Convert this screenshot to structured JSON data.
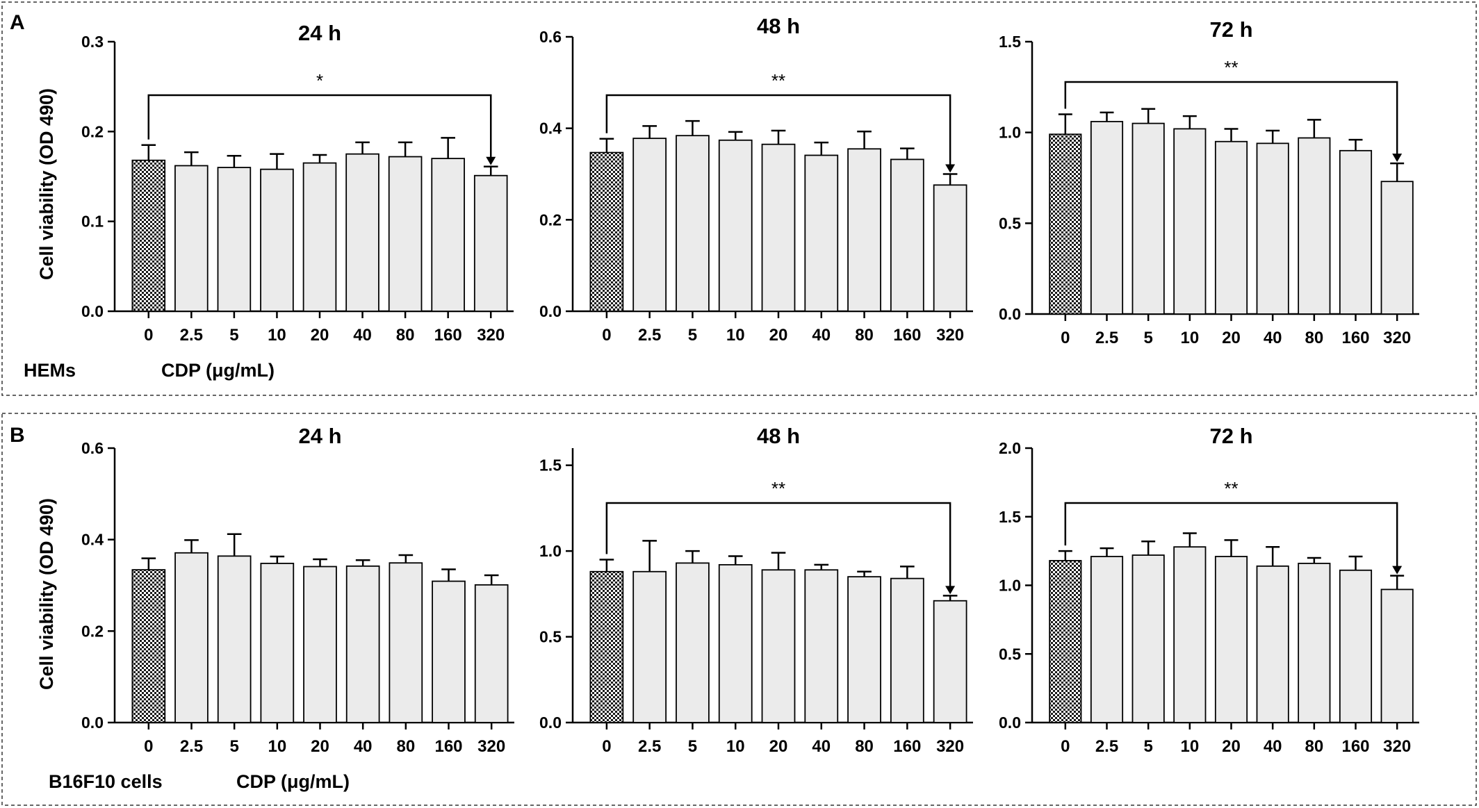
{
  "figure": {
    "ylabel": "Cell viability (OD 490)",
    "categories": [
      "0",
      "2.5",
      "5",
      "10",
      "20",
      "40",
      "80",
      "160",
      "320"
    ]
  },
  "panels": [
    {
      "letter": "A",
      "cell_label": "HEMs",
      "xlabel": "CDP (μg/mL)"
    },
    {
      "letter": "B",
      "cell_label": "B16F10 cells",
      "xlabel": "CDP (μg/mL)"
    }
  ],
  "colors": {
    "bar_fill": "#ebebeb",
    "stroke": "#000000",
    "control_pattern": "checkerboard-black-white"
  },
  "chart_data": [
    {
      "type": "bar",
      "panel": "A",
      "title": "24 h",
      "ylabel": "Cell viability (OD 490)",
      "xlabel": "",
      "categories": [
        "0",
        "2.5",
        "5",
        "10",
        "20",
        "40",
        "80",
        "160",
        "320"
      ],
      "values": [
        0.168,
        0.162,
        0.16,
        0.158,
        0.165,
        0.175,
        0.172,
        0.17,
        0.151
      ],
      "errors": [
        0.017,
        0.015,
        0.013,
        0.017,
        0.009,
        0.013,
        0.016,
        0.023,
        0.01
      ],
      "ylim": [
        0,
        0.3
      ],
      "yticks": [
        "0.0",
        "0.1",
        "0.2",
        "0.3"
      ],
      "significance": {
        "from": "0",
        "to": "320",
        "label": "*"
      }
    },
    {
      "type": "bar",
      "panel": "A",
      "title": "48 h",
      "ylabel": "",
      "xlabel": "",
      "categories": [
        "0",
        "2.5",
        "5",
        "10",
        "20",
        "40",
        "80",
        "160",
        "320"
      ],
      "values": [
        0.347,
        0.378,
        0.384,
        0.374,
        0.365,
        0.341,
        0.355,
        0.332,
        0.276
      ],
      "errors": [
        0.03,
        0.027,
        0.032,
        0.018,
        0.03,
        0.028,
        0.038,
        0.024,
        0.024
      ],
      "ylim": [
        0,
        0.6
      ],
      "yticks": [
        "0.0",
        "0.2",
        "0.4",
        "0.6"
      ],
      "significance": {
        "from": "0",
        "to": "320",
        "label": "**"
      }
    },
    {
      "type": "bar",
      "panel": "A",
      "title": "72 h",
      "ylabel": "",
      "xlabel": "",
      "categories": [
        "0",
        "2.5",
        "5",
        "10",
        "20",
        "40",
        "80",
        "160",
        "320"
      ],
      "values": [
        0.99,
        1.06,
        1.05,
        1.02,
        0.95,
        0.94,
        0.97,
        0.9,
        0.73
      ],
      "errors": [
        0.11,
        0.05,
        0.08,
        0.07,
        0.07,
        0.07,
        0.1,
        0.06,
        0.1
      ],
      "ylim": [
        0,
        1.5
      ],
      "yticks": [
        "0.0",
        "0.5",
        "1.0",
        "1.5"
      ],
      "significance": {
        "from": "0",
        "to": "320",
        "label": "**"
      }
    },
    {
      "type": "bar",
      "panel": "B",
      "title": "24 h",
      "ylabel": "Cell viability (OD 490)",
      "xlabel": "",
      "categories": [
        "0",
        "2.5",
        "5",
        "10",
        "20",
        "40",
        "80",
        "160",
        "320"
      ],
      "values": [
        0.334,
        0.371,
        0.364,
        0.348,
        0.341,
        0.342,
        0.349,
        0.309,
        0.301
      ],
      "errors": [
        0.025,
        0.028,
        0.048,
        0.015,
        0.016,
        0.013,
        0.017,
        0.026,
        0.021
      ],
      "ylim": [
        0,
        0.6
      ],
      "yticks": [
        "0.0",
        "0.2",
        "0.4",
        "0.6"
      ]
    },
    {
      "type": "bar",
      "panel": "B",
      "title": "48 h",
      "ylabel": "",
      "xlabel": "",
      "categories": [
        "0",
        "2.5",
        "5",
        "10",
        "20",
        "40",
        "80",
        "160",
        "320"
      ],
      "values": [
        0.88,
        0.88,
        0.93,
        0.92,
        0.89,
        0.89,
        0.85,
        0.84,
        0.71
      ],
      "errors": [
        0.07,
        0.18,
        0.07,
        0.05,
        0.1,
        0.03,
        0.03,
        0.07,
        0.03
      ],
      "ylim": [
        0,
        1.6
      ],
      "yticks": [
        "0.0",
        "0.5",
        "1.0",
        "1.5"
      ],
      "significance": {
        "from": "0",
        "to": "320",
        "label": "**"
      }
    },
    {
      "type": "bar",
      "panel": "B",
      "title": "72 h",
      "ylabel": "",
      "xlabel": "",
      "categories": [
        "0",
        "2.5",
        "5",
        "10",
        "20",
        "40",
        "80",
        "160",
        "320"
      ],
      "values": [
        1.18,
        1.21,
        1.22,
        1.28,
        1.21,
        1.14,
        1.16,
        1.11,
        0.97
      ],
      "errors": [
        0.07,
        0.06,
        0.1,
        0.1,
        0.12,
        0.14,
        0.04,
        0.1,
        0.1
      ],
      "ylim": [
        0,
        2.0
      ],
      "yticks": [
        "0.0",
        "0.5",
        "1.0",
        "1.5",
        "2.0"
      ],
      "significance": {
        "from": "0",
        "to": "320",
        "label": "**"
      }
    }
  ]
}
